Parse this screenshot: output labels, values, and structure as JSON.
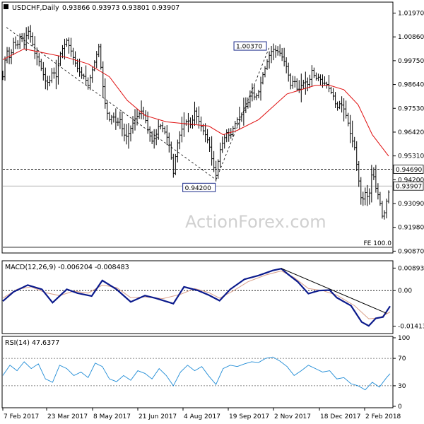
{
  "chart_data": [
    {
      "type": "ohlc",
      "header": {
        "symbol": "USDCHF,Daily",
        "values": "0.93866 0.93973 0.93801 0.93907"
      },
      "watermark": "ActionForex.com",
      "x_ticks": [
        "7 Feb 2017",
        "23 Mar 2017",
        "8 May 2017",
        "21 Jun 2017",
        "4 Aug 2017",
        "19 Sep 2017",
        "2 Nov 2017",
        "18 Dec 2017",
        "2 Feb 2018"
      ],
      "y_ticks": [
        "1.01970",
        "1.00860",
        "0.99750",
        "0.98640",
        "0.97530",
        "0.96420",
        "0.95310",
        "0.94200",
        "0.93090",
        "0.91980",
        "0.90870"
      ],
      "ylim": [
        0.9085,
        1.0225
      ],
      "price_path": [
        [
          0,
          0.99
        ],
        [
          5,
          1.003
        ],
        [
          10,
          0.998
        ],
        [
          15,
          1.006
        ],
        [
          20,
          1.004
        ],
        [
          25,
          1.01
        ],
        [
          30,
          1.005
        ],
        [
          35,
          1.012
        ],
        [
          40,
          1.008
        ],
        [
          45,
          1.001
        ],
        [
          50,
          0.998
        ],
        [
          55,
          0.993
        ],
        [
          60,
          0.988
        ],
        [
          65,
          0.987
        ],
        [
          70,
          0.993
        ],
        [
          75,
          0.99
        ],
        [
          80,
          1.0
        ],
        [
          85,
          1.004
        ],
        [
          90,
          1.007
        ],
        [
          95,
          1.003
        ],
        [
          100,
          0.998
        ],
        [
          105,
          0.994
        ],
        [
          110,
          0.991
        ],
        [
          115,
          0.99
        ],
        [
          120,
          0.986
        ],
        [
          125,
          0.992
        ],
        [
          130,
          0.998
        ],
        [
          135,
          1.004
        ],
        [
          140,
          0.988
        ],
        [
          145,
          0.975
        ],
        [
          150,
          0.97
        ],
        [
          155,
          0.972
        ],
        [
          160,
          0.968
        ],
        [
          165,
          0.97
        ],
        [
          170,
          0.963
        ],
        [
          175,
          0.962
        ],
        [
          180,
          0.966
        ],
        [
          185,
          0.97
        ],
        [
          190,
          0.972
        ],
        [
          195,
          0.974
        ],
        [
          200,
          0.971
        ],
        [
          205,
          0.964
        ],
        [
          210,
          0.96
        ],
        [
          215,
          0.962
        ],
        [
          220,
          0.968
        ],
        [
          225,
          0.966
        ],
        [
          230,
          0.963
        ],
        [
          235,
          0.957
        ],
        [
          240,
          0.945
        ],
        [
          245,
          0.958
        ],
        [
          250,
          0.964
        ],
        [
          255,
          0.968
        ],
        [
          260,
          0.97
        ],
        [
          265,
          0.967
        ],
        [
          270,
          0.974
        ],
        [
          275,
          0.97
        ],
        [
          280,
          0.966
        ],
        [
          285,
          0.963
        ],
        [
          290,
          0.959
        ],
        [
          295,
          0.95
        ],
        [
          300,
          0.944
        ],
        [
          305,
          0.955
        ],
        [
          310,
          0.96
        ],
        [
          315,
          0.964
        ],
        [
          320,
          0.962
        ],
        [
          325,
          0.967
        ],
        [
          330,
          0.97
        ],
        [
          335,
          0.972
        ],
        [
          340,
          0.975
        ],
        [
          345,
          0.978
        ],
        [
          350,
          0.983
        ],
        [
          355,
          0.98
        ],
        [
          360,
          0.983
        ],
        [
          365,
          0.99
        ],
        [
          370,
          0.995
        ],
        [
          375,
          1.0
        ],
        [
          380,
          1.003
        ],
        [
          385,
          1.002
        ],
        [
          390,
          1.001
        ],
        [
          395,
          0.998
        ],
        [
          400,
          0.994
        ],
        [
          405,
          0.986
        ],
        [
          410,
          0.989
        ],
        [
          415,
          0.983
        ],
        [
          420,
          0.986
        ],
        [
          425,
          0.988
        ],
        [
          430,
          0.986
        ],
        [
          435,
          0.993
        ],
        [
          440,
          0.989
        ],
        [
          445,
          0.99
        ],
        [
          450,
          0.987
        ],
        [
          455,
          0.987
        ],
        [
          460,
          0.984
        ],
        [
          465,
          0.981
        ],
        [
          470,
          0.975
        ],
        [
          475,
          0.978
        ],
        [
          480,
          0.975
        ],
        [
          485,
          0.97
        ],
        [
          490,
          0.962
        ],
        [
          495,
          0.957
        ],
        [
          500,
          0.944
        ],
        [
          505,
          0.931
        ],
        [
          510,
          0.936
        ],
        [
          515,
          0.933
        ],
        [
          520,
          0.947
        ],
        [
          525,
          0.938
        ],
        [
          530,
          0.933
        ],
        [
          535,
          0.923
        ],
        [
          540,
          0.932
        ],
        [
          545,
          0.939
        ]
      ],
      "ma_path": [
        [
          0,
          0.998
        ],
        [
          30,
          1.003
        ],
        [
          60,
          1.001
        ],
        [
          90,
          0.999
        ],
        [
          120,
          0.996
        ],
        [
          150,
          0.99
        ],
        [
          175,
          0.979
        ],
        [
          200,
          0.972
        ],
        [
          230,
          0.969
        ],
        [
          260,
          0.968
        ],
        [
          290,
          0.967
        ],
        [
          310,
          0.963
        ],
        [
          330,
          0.965
        ],
        [
          360,
          0.97
        ],
        [
          380,
          0.976
        ],
        [
          400,
          0.982
        ],
        [
          420,
          0.984
        ],
        [
          440,
          0.986
        ],
        [
          460,
          0.986
        ],
        [
          480,
          0.984
        ],
        [
          500,
          0.977
        ],
        [
          520,
          0.963
        ],
        [
          543,
          0.953
        ]
      ],
      "levels": [
        {
          "value": 0.9469,
          "label": "0.94690",
          "style": "dashed"
        },
        {
          "value": 0.93907,
          "label": "0.93907",
          "style": "solid-gray"
        }
      ],
      "annotations": [
        {
          "label": "1.00370",
          "x": 375,
          "value": 1.0037
        },
        {
          "label": "0.94200",
          "x": 300,
          "value": 0.942
        }
      ],
      "projection_lines": [
        [
          [
            5,
            1.013
          ],
          [
            300,
            0.942
          ]
        ],
        [
          [
            300,
            0.942
          ],
          [
            375,
            1.0037
          ]
        ]
      ],
      "fe_label": "FE 100.0",
      "fe_value": 0.9105
    },
    {
      "type": "line",
      "title": "MACD(12,26,9) -0.006204 -0.008483",
      "y_ticks": [
        "0.008934",
        "0.00",
        "-0.014136"
      ],
      "ylim": [
        -0.0165,
        0.011
      ],
      "zero_line": true,
      "macd_path": [
        [
          0,
          -0.0042
        ],
        [
          15,
          -0.0005
        ],
        [
          35,
          0.0022
        ],
        [
          55,
          0.0005
        ],
        [
          70,
          -0.0048
        ],
        [
          90,
          0.0005
        ],
        [
          105,
          -0.001
        ],
        [
          125,
          -0.0022
        ],
        [
          140,
          0.004
        ],
        [
          160,
          0.0005
        ],
        [
          180,
          -0.0045
        ],
        [
          200,
          -0.002
        ],
        [
          215,
          -0.003
        ],
        [
          240,
          -0.0052
        ],
        [
          255,
          0.0015
        ],
        [
          275,
          0.0
        ],
        [
          290,
          -0.0018
        ],
        [
          305,
          -0.004
        ],
        [
          320,
          0.0005
        ],
        [
          340,
          0.0045
        ],
        [
          360,
          0.006
        ],
        [
          380,
          0.008
        ],
        [
          392,
          0.0087
        ],
        [
          400,
          0.0068
        ],
        [
          415,
          0.0035
        ],
        [
          430,
          -0.0012
        ],
        [
          445,
          0.0
        ],
        [
          460,
          0.0002
        ],
        [
          470,
          -0.0028
        ],
        [
          490,
          -0.006
        ],
        [
          505,
          -0.0125
        ],
        [
          515,
          -0.014
        ],
        [
          525,
          -0.011
        ],
        [
          535,
          -0.0105
        ],
        [
          545,
          -0.0062
        ]
      ],
      "signal_path": [
        [
          0,
          -0.003
        ],
        [
          20,
          0.0005
        ],
        [
          40,
          0.0015
        ],
        [
          60,
          -0.0008
        ],
        [
          80,
          -0.002
        ],
        [
          100,
          -0.0002
        ],
        [
          120,
          -0.001
        ],
        [
          140,
          0.0022
        ],
        [
          160,
          0.0012
        ],
        [
          180,
          -0.0028
        ],
        [
          200,
          -0.0025
        ],
        [
          225,
          -0.0032
        ],
        [
          250,
          -0.0015
        ],
        [
          270,
          0.0008
        ],
        [
          290,
          -0.0008
        ],
        [
          305,
          -0.003
        ],
        [
          325,
          0.0
        ],
        [
          345,
          0.0035
        ],
        [
          370,
          0.0062
        ],
        [
          392,
          0.0078
        ],
        [
          410,
          0.0052
        ],
        [
          430,
          0.0008
        ],
        [
          450,
          0.0
        ],
        [
          470,
          -0.0018
        ],
        [
          495,
          -0.006
        ],
        [
          515,
          -0.0112
        ],
        [
          530,
          -0.0108
        ],
        [
          545,
          -0.0085
        ]
      ],
      "trendline": [
        [
          392,
          0.0088
        ],
        [
          540,
          -0.009
        ]
      ]
    },
    {
      "type": "line",
      "title": "RSI(14) 47.6377",
      "y_ticks": [
        "100",
        "70",
        "30",
        "0"
      ],
      "ylim": [
        0,
        100
      ],
      "levels": [
        70,
        30
      ],
      "rsi_path": [
        [
          0,
          45
        ],
        [
          10,
          60
        ],
        [
          20,
          52
        ],
        [
          30,
          65
        ],
        [
          40,
          55
        ],
        [
          50,
          62
        ],
        [
          60,
          40
        ],
        [
          70,
          35
        ],
        [
          80,
          60
        ],
        [
          90,
          55
        ],
        [
          100,
          45
        ],
        [
          110,
          50
        ],
        [
          120,
          42
        ],
        [
          130,
          63
        ],
        [
          140,
          58
        ],
        [
          150,
          40
        ],
        [
          160,
          36
        ],
        [
          170,
          45
        ],
        [
          180,
          38
        ],
        [
          190,
          52
        ],
        [
          200,
          48
        ],
        [
          210,
          40
        ],
        [
          220,
          55
        ],
        [
          230,
          45
        ],
        [
          240,
          30
        ],
        [
          250,
          50
        ],
        [
          260,
          60
        ],
        [
          270,
          52
        ],
        [
          280,
          58
        ],
        [
          290,
          44
        ],
        [
          300,
          32
        ],
        [
          310,
          55
        ],
        [
          320,
          60
        ],
        [
          330,
          58
        ],
        [
          340,
          62
        ],
        [
          350,
          65
        ],
        [
          360,
          64
        ],
        [
          370,
          70
        ],
        [
          380,
          72
        ],
        [
          390,
          66
        ],
        [
          400,
          58
        ],
        [
          410,
          45
        ],
        [
          420,
          52
        ],
        [
          430,
          60
        ],
        [
          440,
          55
        ],
        [
          450,
          50
        ],
        [
          460,
          52
        ],
        [
          470,
          40
        ],
        [
          480,
          42
        ],
        [
          490,
          33
        ],
        [
          500,
          30
        ],
        [
          510,
          24
        ],
        [
          520,
          35
        ],
        [
          530,
          28
        ],
        [
          540,
          42
        ],
        [
          545,
          47.6
        ]
      ]
    }
  ]
}
